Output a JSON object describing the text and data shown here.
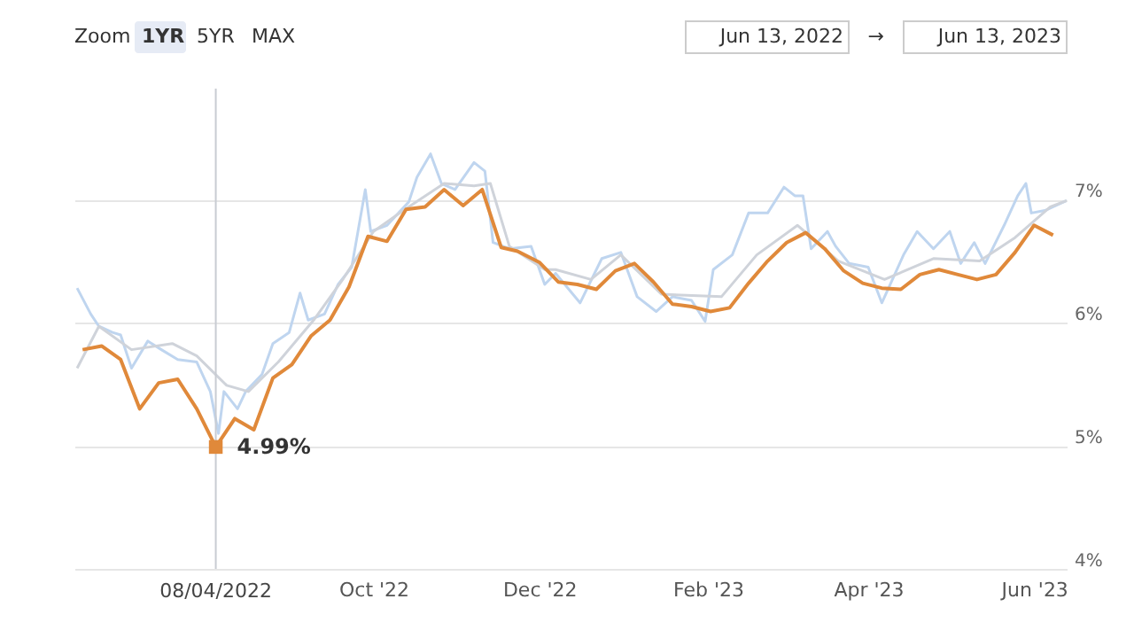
{
  "chart_data": {
    "type": "line",
    "grid": "y",
    "marker": "none",
    "line_style": "solid",
    "annotations": [
      "Zoom",
      "1YR",
      "5YR",
      "MAX",
      "Jun 13, 2022",
      "→",
      "Jun 13, 2023",
      {
        "text": "4.99%",
        "x": "2022-08-04",
        "y": 4.99
      }
    ],
    "xlim": [
      "2022-06-13",
      "2023-06-13"
    ],
    "xticks": [
      {
        "value": "2022-10-01",
        "label": "Oct '22"
      },
      {
        "value": "2022-12-01",
        "label": "Dec '22"
      },
      {
        "value": "2023-02-01",
        "label": "Feb '23"
      },
      {
        "value": "2023-04-01",
        "label": "Apr '23"
      },
      {
        "value": "2023-06-01",
        "label": "Jun '23"
      }
    ],
    "ylim": [
      4,
      7.9
    ],
    "yticks": [
      {
        "value": 4,
        "label": "4%"
      },
      {
        "value": 5,
        "label": "5%"
      },
      {
        "value": 6,
        "label": "6%"
      },
      {
        "value": 7,
        "label": "7%"
      }
    ],
    "ref_lines": [
      {
        "axis": "x",
        "value": "2022-08-04",
        "label": "08/04/2022",
        "color": "#c8ccd2"
      }
    ],
    "series": [
      {
        "color": "#bfd5ef",
        "x": [
          "2022-06-14",
          "2022-06-19",
          "2022-06-22",
          "2022-06-27",
          "2022-06-30",
          "2022-07-04",
          "2022-07-10",
          "2022-07-15",
          "2022-07-21",
          "2022-07-28",
          "2022-08-02",
          "2022-08-05",
          "2022-08-07",
          "2022-08-12",
          "2022-08-15",
          "2022-08-21",
          "2022-08-25",
          "2022-08-31",
          "2022-09-04",
          "2022-09-07",
          "2022-09-13",
          "2022-09-18",
          "2022-09-23",
          "2022-09-28",
          "2022-09-30",
          "2022-10-06",
          "2022-10-14",
          "2022-10-17",
          "2022-10-22",
          "2022-10-26",
          "2022-10-31",
          "2022-11-07",
          "2022-11-11",
          "2022-11-14",
          "2022-11-20",
          "2022-11-28",
          "2022-12-03",
          "2022-12-07",
          "2022-12-16",
          "2022-12-24",
          "2022-12-31",
          "2023-01-06",
          "2023-01-13",
          "2023-01-19",
          "2023-01-26",
          "2023-01-31",
          "2023-02-03",
          "2023-02-10",
          "2023-02-16",
          "2023-02-23",
          "2023-03-01",
          "2023-03-05",
          "2023-03-08",
          "2023-03-11",
          "2023-03-17",
          "2023-03-20",
          "2023-03-25",
          "2023-04-01",
          "2023-04-06",
          "2023-04-14",
          "2023-04-19",
          "2023-04-25",
          "2023-05-01",
          "2023-05-05",
          "2023-05-10",
          "2023-05-14",
          "2023-05-21",
          "2023-05-26",
          "2023-05-29",
          "2023-05-31",
          "2023-06-05",
          "2023-06-13"
        ],
        "values": [
          6.28,
          6.07,
          5.97,
          5.92,
          5.9,
          5.63,
          5.85,
          5.78,
          5.7,
          5.68,
          5.44,
          5.1,
          5.44,
          5.3,
          5.44,
          5.58,
          5.83,
          5.92,
          6.24,
          6.02,
          6.07,
          6.31,
          6.45,
          7.08,
          6.74,
          6.79,
          6.98,
          7.18,
          7.37,
          7.13,
          7.08,
          7.3,
          7.23,
          6.65,
          6.6,
          6.62,
          6.31,
          6.4,
          6.16,
          6.52,
          6.57,
          6.21,
          6.09,
          6.21,
          6.18,
          6.01,
          6.43,
          6.55,
          6.89,
          6.89,
          7.1,
          7.03,
          7.03,
          6.6,
          6.74,
          6.62,
          6.48,
          6.45,
          6.16,
          6.55,
          6.74,
          6.6,
          6.74,
          6.48,
          6.65,
          6.48,
          6.79,
          7.03,
          7.13,
          6.89,
          6.91,
          6.99
        ]
      },
      {
        "color": "#cfd3da",
        "x": [
          "2022-06-14",
          "2022-06-22",
          "2022-07-04",
          "2022-07-19",
          "2022-07-28",
          "2022-08-08",
          "2022-08-16",
          "2022-08-27",
          "2022-09-09",
          "2022-09-20",
          "2022-10-01",
          "2022-10-12",
          "2022-10-27",
          "2022-11-07",
          "2022-11-13",
          "2022-11-20",
          "2022-12-03",
          "2022-12-07",
          "2022-12-20",
          "2022-12-31",
          "2023-01-15",
          "2023-02-06",
          "2023-02-19",
          "2023-03-06",
          "2023-03-21",
          "2023-04-07",
          "2023-04-25",
          "2023-05-12",
          "2023-05-25",
          "2023-06-07",
          "2023-06-13"
        ],
        "values": [
          5.63,
          5.97,
          5.78,
          5.83,
          5.73,
          5.49,
          5.44,
          5.68,
          6.02,
          6.36,
          6.74,
          6.91,
          7.13,
          7.11,
          7.13,
          6.62,
          6.43,
          6.43,
          6.35,
          6.55,
          6.23,
          6.21,
          6.55,
          6.79,
          6.5,
          6.35,
          6.52,
          6.5,
          6.69,
          6.94,
          6.99
        ]
      },
      {
        "color": "#e0893a",
        "x": [
          "2022-06-16",
          "2022-06-23",
          "2022-06-30",
          "2022-07-07",
          "2022-07-14",
          "2022-07-21",
          "2022-07-28",
          "2022-08-04",
          "2022-08-11",
          "2022-08-18",
          "2022-08-25",
          "2022-09-01",
          "2022-09-08",
          "2022-09-15",
          "2022-09-22",
          "2022-09-29",
          "2022-10-06",
          "2022-10-13",
          "2022-10-20",
          "2022-10-27",
          "2022-11-03",
          "2022-11-10",
          "2022-11-17",
          "2022-11-23",
          "2022-12-01",
          "2022-12-08",
          "2022-12-15",
          "2022-12-22",
          "2022-12-29",
          "2023-01-05",
          "2023-01-12",
          "2023-01-19",
          "2023-01-26",
          "2023-02-02",
          "2023-02-09",
          "2023-02-16",
          "2023-02-23",
          "2023-03-02",
          "2023-03-09",
          "2023-03-16",
          "2023-03-23",
          "2023-03-30",
          "2023-04-06",
          "2023-04-13",
          "2023-04-20",
          "2023-04-27",
          "2023-05-04",
          "2023-05-11",
          "2023-05-18",
          "2023-05-25",
          "2023-06-01",
          "2023-06-08"
        ],
        "values": [
          5.78,
          5.81,
          5.7,
          5.3,
          5.51,
          5.54,
          5.3,
          4.99,
          5.22,
          5.13,
          5.55,
          5.66,
          5.89,
          6.02,
          6.29,
          6.7,
          6.66,
          6.92,
          6.94,
          7.08,
          6.95,
          7.08,
          6.61,
          6.58,
          6.49,
          6.33,
          6.31,
          6.27,
          6.42,
          6.48,
          6.33,
          6.15,
          6.13,
          6.09,
          6.12,
          6.32,
          6.5,
          6.65,
          6.73,
          6.6,
          6.42,
          6.32,
          6.28,
          6.27,
          6.39,
          6.43,
          6.39,
          6.35,
          6.39,
          6.57,
          6.79,
          6.71
        ]
      }
    ]
  }
}
